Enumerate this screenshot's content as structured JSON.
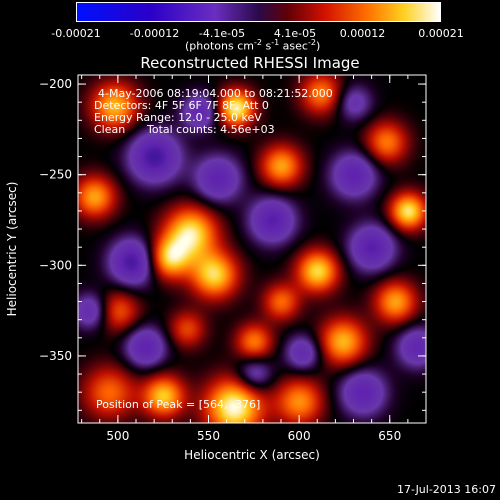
{
  "chart_data": {
    "type": "heatmap",
    "title": "Reconstructed RHESSI Image",
    "xlabel": "Heliocentric X (arcsec)",
    "ylabel": "Heliocentric Y (arcsec)",
    "xlim": [
      478,
      670
    ],
    "ylim": [
      -387,
      -195
    ],
    "x_ticks": [
      500,
      550,
      600,
      650
    ],
    "y_ticks": [
      -200,
      -250,
      -300,
      -350
    ],
    "colorbar": {
      "range": [
        -0.00021,
        0.00021
      ],
      "ticks": [
        "-0.00021",
        "-0.00012",
        "-4.1e-05",
        "4.1e-05",
        "0.00012",
        "0.00021"
      ],
      "unit_label_main": "(photons cm",
      "unit_label_sup1": "-2",
      "unit_label_mid": " s",
      "unit_label_sup2": "-1",
      "unit_label_end": " asec",
      "unit_label_sup3": "-2",
      "unit_label_close": ")"
    },
    "annotations": {
      "time_range": "4-May-2006 08:19:04.000 to 08:21:52.000",
      "detectors": "Detectors: 4F 5F 6F 7F 8F, Att 0",
      "energy": "Energy Range: 12.0 - 25.0 keV",
      "method": "Clean",
      "counts": "Total counts: 4.56e+03",
      "peak": "Position of Peak = [564, -376]"
    },
    "footer_date": "17-Jul-2013 16:07",
    "blobs": [
      {
        "x": 564,
        "y": -378,
        "a": 1.0,
        "s": 11
      },
      {
        "x": 565,
        "y": -213,
        "a": 0.95,
        "s": 7
      },
      {
        "x": 540,
        "y": -282,
        "a": 0.9,
        "s": 10
      },
      {
        "x": 528,
        "y": -296,
        "a": 0.8,
        "s": 8
      },
      {
        "x": 553,
        "y": -305,
        "a": 0.85,
        "s": 9
      },
      {
        "x": 610,
        "y": -303,
        "a": 0.85,
        "s": 8
      },
      {
        "x": 498,
        "y": -212,
        "a": 0.75,
        "s": 9
      },
      {
        "x": 487,
        "y": -262,
        "a": 0.7,
        "s": 8
      },
      {
        "x": 660,
        "y": -270,
        "a": 0.9,
        "s": 7
      },
      {
        "x": 653,
        "y": -320,
        "a": 0.7,
        "s": 8
      },
      {
        "x": 624,
        "y": -342,
        "a": 0.75,
        "s": 9
      },
      {
        "x": 525,
        "y": -372,
        "a": 0.8,
        "s": 8
      },
      {
        "x": 495,
        "y": -370,
        "a": 0.55,
        "s": 10
      },
      {
        "x": 600,
        "y": -375,
        "a": 0.65,
        "s": 9
      },
      {
        "x": 590,
        "y": -245,
        "a": 0.7,
        "s": 8
      },
      {
        "x": 612,
        "y": -205,
        "a": 0.6,
        "s": 8
      },
      {
        "x": 648,
        "y": -232,
        "a": 0.6,
        "s": 8
      },
      {
        "x": 575,
        "y": -342,
        "a": 0.6,
        "s": 7
      },
      {
        "x": 500,
        "y": -325,
        "a": 0.5,
        "s": 8
      },
      {
        "x": 590,
        "y": -320,
        "a": 0.55,
        "s": 7
      },
      {
        "x": 538,
        "y": -335,
        "a": 0.45,
        "s": 7
      },
      {
        "x": 520,
        "y": -240,
        "a": -0.75,
        "s": 10
      },
      {
        "x": 508,
        "y": -298,
        "a": -0.75,
        "s": 9
      },
      {
        "x": 515,
        "y": -345,
        "a": -0.6,
        "s": 8
      },
      {
        "x": 555,
        "y": -252,
        "a": -0.6,
        "s": 9
      },
      {
        "x": 585,
        "y": -275,
        "a": -0.65,
        "s": 9
      },
      {
        "x": 630,
        "y": -250,
        "a": -0.6,
        "s": 9
      },
      {
        "x": 640,
        "y": -290,
        "a": -0.65,
        "s": 9
      },
      {
        "x": 635,
        "y": -370,
        "a": -0.6,
        "s": 9
      },
      {
        "x": 545,
        "y": -215,
        "a": -0.55,
        "s": 7
      },
      {
        "x": 575,
        "y": -360,
        "a": -0.45,
        "s": 7
      },
      {
        "x": 665,
        "y": -345,
        "a": -0.55,
        "s": 8
      },
      {
        "x": 602,
        "y": -348,
        "a": -0.5,
        "s": 7
      },
      {
        "x": 485,
        "y": -325,
        "a": -0.5,
        "s": 7
      },
      {
        "x": 630,
        "y": -210,
        "a": -0.4,
        "s": 7
      }
    ]
  }
}
